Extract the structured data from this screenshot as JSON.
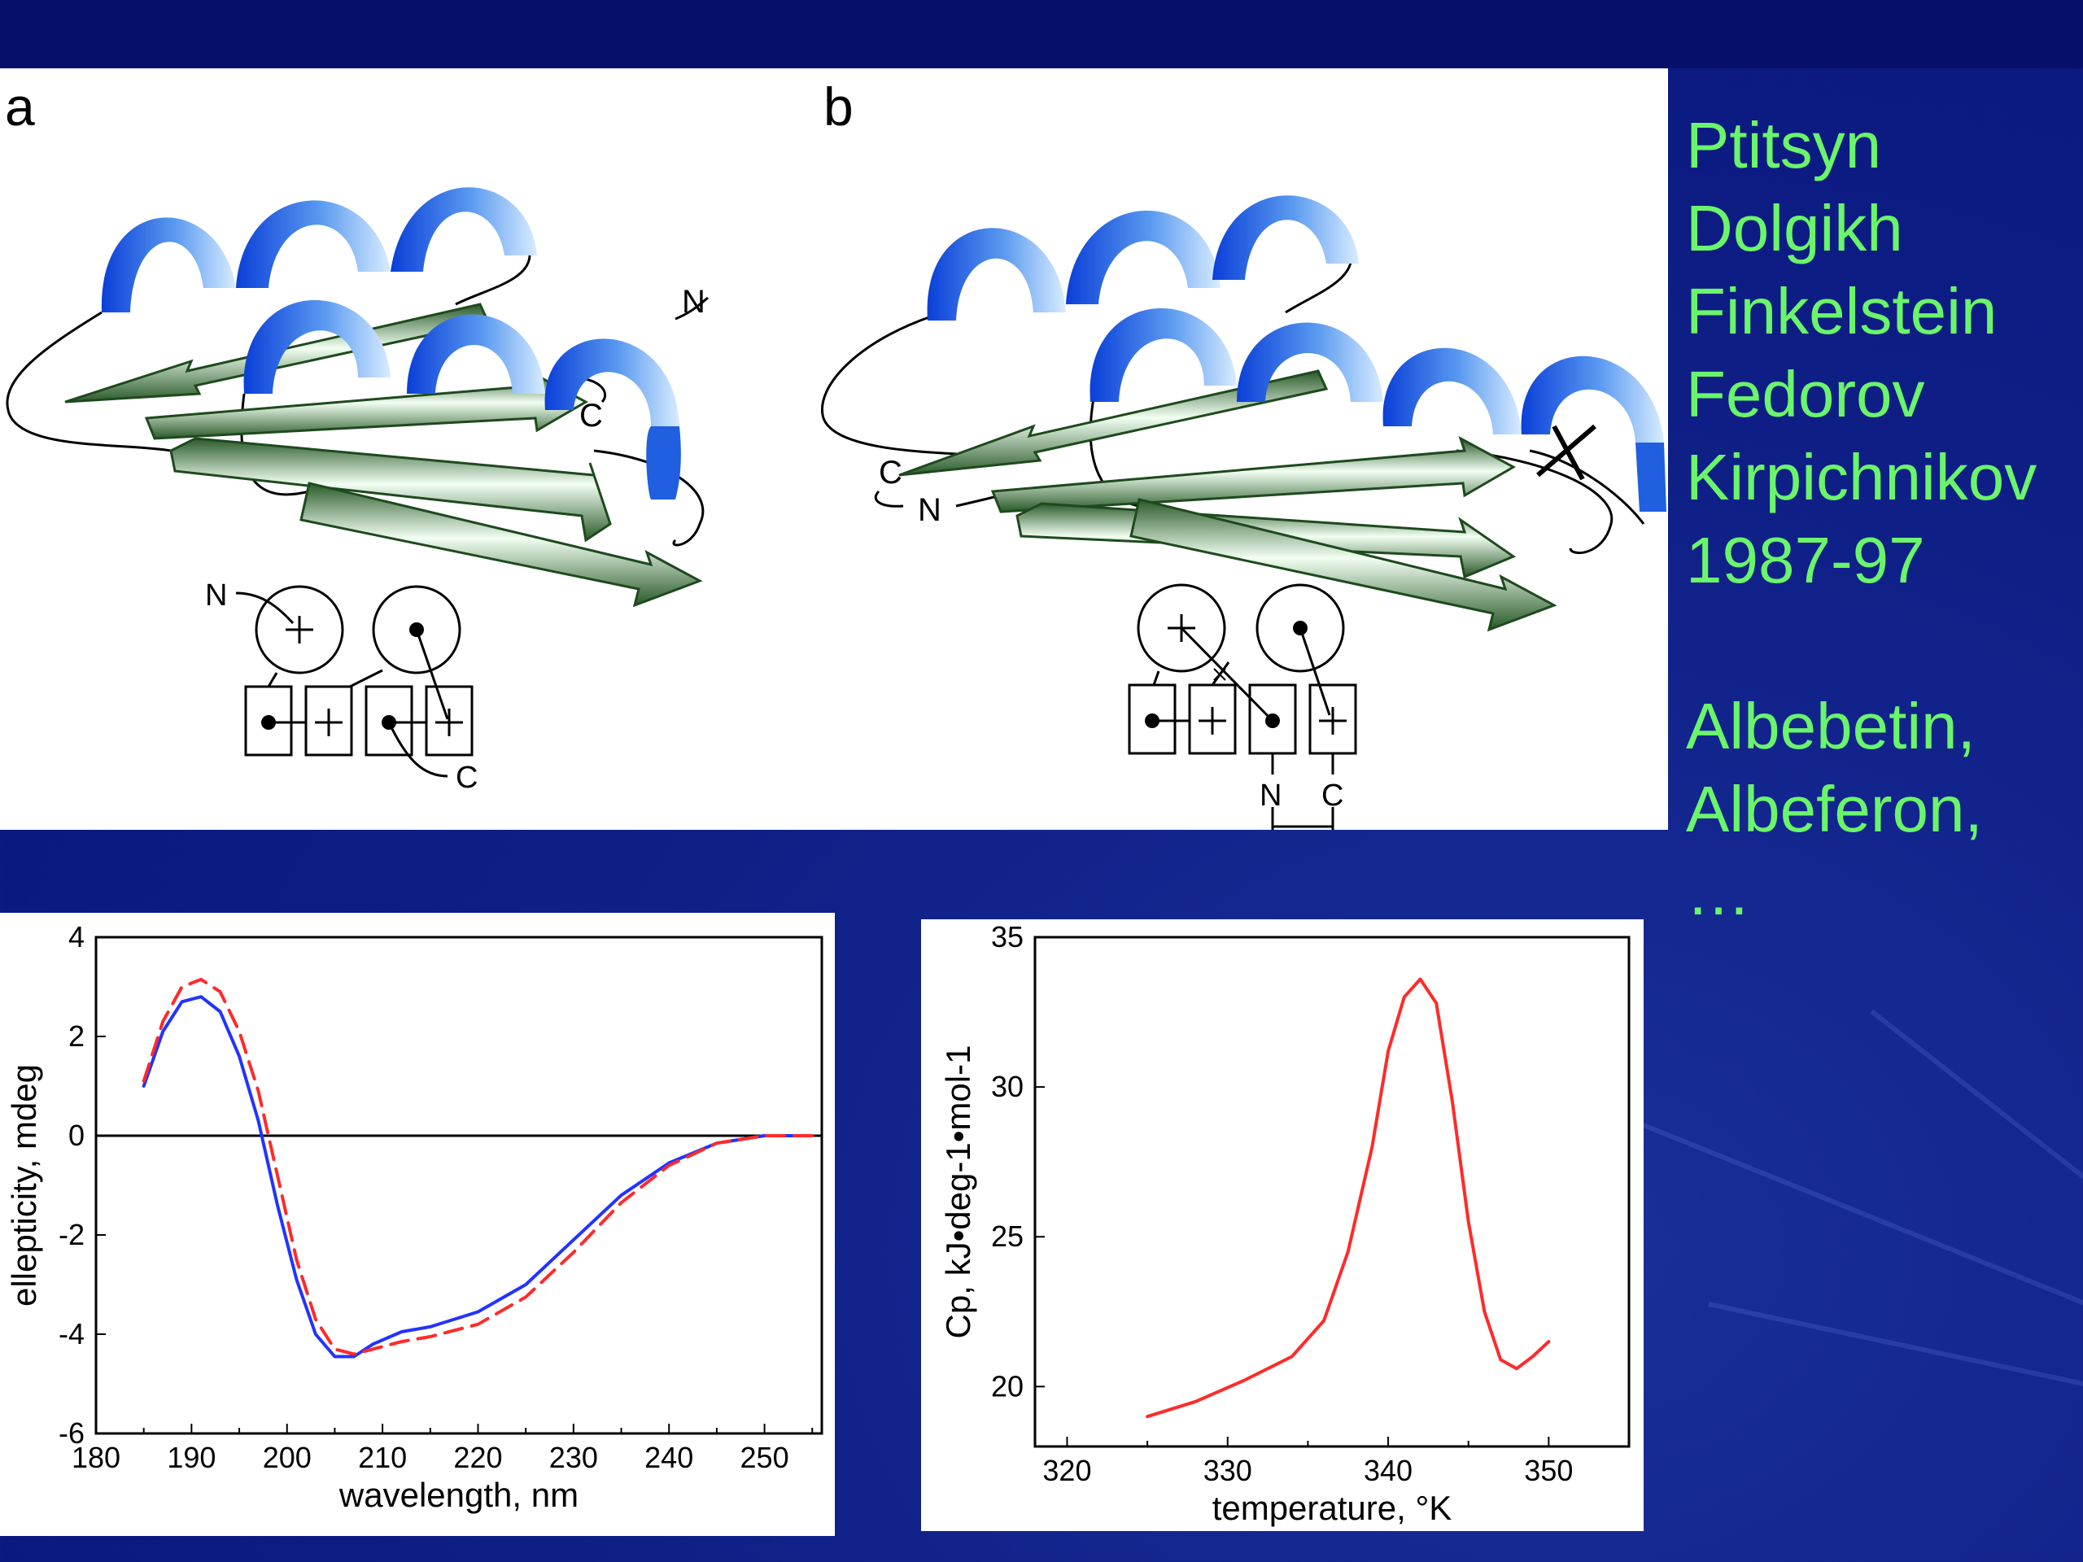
{
  "structure_a": {
    "panel_label": "a",
    "end_labels": {
      "n": "N",
      "c": "C"
    },
    "topology": {
      "n": "N",
      "c": "C"
    }
  },
  "structure_b": {
    "panel_label": "b",
    "end_labels": {
      "n": "N",
      "c": "C"
    },
    "topology": {
      "n": "N",
      "c": "C"
    }
  },
  "authors": [
    "Ptitsyn",
    "Dolgikh",
    "Finkelstein",
    "Fedorov",
    "Kirpichnikov",
    "1987-97",
    "",
    "Albebetin,",
    "Albeferon,",
    "…"
  ],
  "colors": {
    "helix": "#1f5fe0",
    "strand": "#2f6a2f",
    "blue_line": "#2233ff",
    "red_line": "#ff2a2a",
    "author_text": "#6af56a"
  },
  "chart_data": [
    {
      "type": "line",
      "xlabel": "wavelength, nm",
      "ylabel": "ellepticity, mdeg",
      "xlim": [
        180,
        256
      ],
      "ylim": [
        -6,
        4
      ],
      "xticks": [
        180,
        190,
        200,
        210,
        220,
        230,
        240,
        250
      ],
      "yticks": [
        -6,
        -4,
        -2,
        0,
        2,
        4
      ],
      "series": [
        {
          "style": "solid",
          "color": "#2233ff",
          "x": [
            185,
            187,
            189,
            191,
            193,
            195,
            197,
            199,
            201,
            203,
            205,
            207,
            209,
            212,
            215,
            220,
            225,
            230,
            235,
            240,
            245,
            250,
            255
          ],
          "y": [
            1.0,
            2.1,
            2.7,
            2.8,
            2.5,
            1.6,
            0.3,
            -1.4,
            -2.9,
            -4.0,
            -4.45,
            -4.45,
            -4.2,
            -3.95,
            -3.85,
            -3.55,
            -3.0,
            -2.1,
            -1.2,
            -0.55,
            -0.15,
            0.0,
            0.0
          ]
        },
        {
          "style": "dashed",
          "color": "#ff2a2a",
          "x": [
            185,
            187,
            189,
            191,
            193,
            195,
            197,
            199,
            201,
            203,
            205,
            207,
            209,
            212,
            215,
            220,
            225,
            230,
            235,
            240,
            245,
            250,
            255
          ],
          "y": [
            1.1,
            2.3,
            3.0,
            3.15,
            2.9,
            2.1,
            0.9,
            -0.8,
            -2.5,
            -3.7,
            -4.3,
            -4.4,
            -4.3,
            -4.15,
            -4.05,
            -3.8,
            -3.25,
            -2.35,
            -1.35,
            -0.6,
            -0.15,
            0.0,
            0.0
          ]
        }
      ]
    },
    {
      "type": "line",
      "xlabel": "temperature, °K",
      "ylabel": "Cp, kJ•deg-1•mol-1",
      "xlim": [
        318,
        355
      ],
      "ylim": [
        18,
        35
      ],
      "xticks": [
        320,
        330,
        340,
        350
      ],
      "yticks": [
        20,
        25,
        30,
        35
      ],
      "series": [
        {
          "style": "solid",
          "color": "#ff2a2a",
          "x": [
            325,
            328,
            331,
            334,
            336,
            337.5,
            339,
            340,
            341,
            342,
            343,
            344,
            345,
            346,
            347,
            348,
            349,
            350
          ],
          "y": [
            19.0,
            19.5,
            20.2,
            21.0,
            22.2,
            24.5,
            28.0,
            31.2,
            33.0,
            33.6,
            32.8,
            29.5,
            25.5,
            22.5,
            20.9,
            20.6,
            21.0,
            21.5
          ]
        }
      ]
    }
  ]
}
